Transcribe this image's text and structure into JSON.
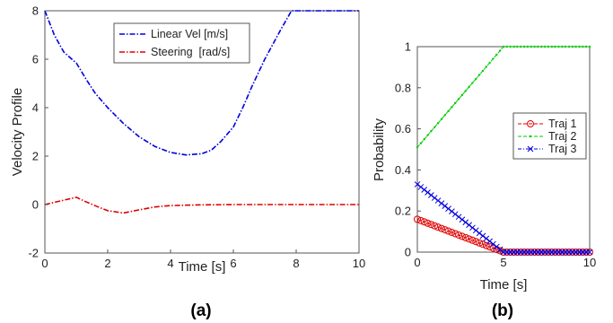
{
  "chart_data": [
    {
      "type": "line",
      "panel_caption": "(a)",
      "xlabel": "Time [s]",
      "ylabel": "Velocity Profile",
      "xlim": [
        0,
        10
      ],
      "ylim": [
        -2,
        8
      ],
      "xticks": [
        0,
        2,
        4,
        6,
        8,
        10
      ],
      "yticks": [
        -2,
        0,
        2,
        4,
        6,
        8
      ],
      "grid": false,
      "legend_position": "top-center",
      "series": [
        {
          "name": "Linear Vel [m/s]",
          "color": "#0000e0",
          "style": "dash-dot",
          "x": [
            0,
            0.3,
            0.6,
            0.9,
            1.0,
            1.3,
            1.6,
            2.0,
            2.5,
            3.0,
            3.5,
            4.0,
            4.5,
            5.0,
            5.3,
            5.6,
            6.0,
            6.3,
            6.6,
            7.0,
            7.5,
            7.85,
            8.5,
            9.0,
            10.0
          ],
          "values": [
            8.0,
            7.0,
            6.3,
            5.95,
            5.85,
            5.2,
            4.6,
            4.0,
            3.35,
            2.8,
            2.4,
            2.15,
            2.05,
            2.1,
            2.25,
            2.6,
            3.2,
            4.0,
            4.9,
            6.0,
            7.2,
            8.0,
            8.0,
            8.0,
            8.0
          ]
        },
        {
          "name": "Steering  [rad/s]",
          "color": "#e00000",
          "style": "dash-dot",
          "x": [
            0,
            0.5,
            1.0,
            1.3,
            1.7,
            2.0,
            2.5,
            3.0,
            3.5,
            4.0,
            5.0,
            6.0,
            7.0,
            8.0,
            9.0,
            10.0
          ],
          "values": [
            0.0,
            0.15,
            0.3,
            0.12,
            -0.1,
            -0.25,
            -0.35,
            -0.22,
            -0.1,
            -0.04,
            -0.01,
            0.0,
            0.0,
            0.0,
            0.0,
            0.0
          ]
        }
      ]
    },
    {
      "type": "line",
      "panel_caption": "(b)",
      "xlabel": "Time [s]",
      "ylabel": "Probability",
      "xlim": [
        0,
        10
      ],
      "ylim": [
        0,
        1
      ],
      "xticks": [
        0,
        5,
        10
      ],
      "yticks": [
        0,
        0.2,
        0.4,
        0.6,
        0.8,
        1
      ],
      "grid": false,
      "legend_position": "center-right",
      "series": [
        {
          "name": "Traj 1",
          "color": "#e00000",
          "style": "dashed",
          "marker": "circle",
          "x": [
            0,
            5,
            10
          ],
          "values": [
            0.16,
            0.0,
            0.0
          ]
        },
        {
          "name": "Traj 2",
          "color": "#00cc00",
          "style": "dashed",
          "marker": "point",
          "x": [
            0,
            5,
            10
          ],
          "values": [
            0.51,
            1.0,
            1.0
          ]
        },
        {
          "name": "Traj 3",
          "color": "#0000e0",
          "style": "dash-dot",
          "marker": "x",
          "x": [
            0,
            5,
            10
          ],
          "values": [
            0.33,
            0.0,
            0.0
          ]
        }
      ]
    }
  ]
}
